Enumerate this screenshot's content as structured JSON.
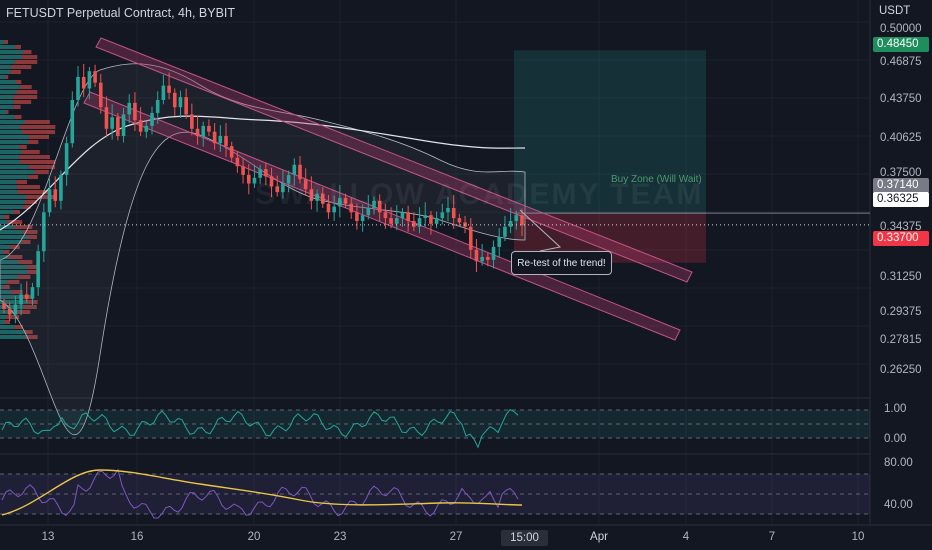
{
  "header": {
    "title": "FETUSDT Perpetual Contract, 4h, BYBIT",
    "currency": "USDT"
  },
  "watermark": "SWALLOW ACADEMY TEAM",
  "annotations": {
    "callout": "Re-test of the trend!",
    "buy_zone": "Buy Zone (Will Wait)"
  },
  "badges": {
    "target": {
      "label": "0.48450",
      "color": "#1e8f5c"
    },
    "entry": {
      "label": "0.37140",
      "color": "#787b86"
    },
    "current": {
      "label": "0.36325",
      "color": "#ffffff"
    },
    "stop": {
      "label": "0.33700",
      "color": "#f23645"
    }
  },
  "price_axis": [
    "0.50000",
    "0.46875",
    "0.43750",
    "0.40625",
    "0.37500",
    "0.34375",
    "0.31250",
    "0.29375",
    "0.27815",
    "0.26250"
  ],
  "osc1_axis": [
    "1.00",
    "0.00"
  ],
  "osc2_axis": [
    "80.00",
    "40.00"
  ],
  "time_axis": {
    "labels": [
      "13",
      "16",
      "20",
      "23",
      "27",
      "Apr",
      "4",
      "7",
      "10"
    ],
    "bold": [
      "Apr"
    ],
    "current": "15:00"
  },
  "colors": {
    "bull": "#26a69a",
    "bear": "#ef5350",
    "channel": "#b03a6a",
    "rsi": "#7e57c2",
    "ma": "#e8c547",
    "osc1": "#26a69a"
  },
  "chart_data": {
    "type": "candlestick",
    "symbol": "FETUSDT",
    "interval": "4h",
    "ylim": [
      0.255,
      0.505
    ],
    "current_price": 0.36325,
    "trade": {
      "target": 0.4845,
      "entry": 0.3714,
      "stop": 0.337
    },
    "closes": [
      0.305,
      0.301,
      0.308,
      0.315,
      0.312,
      0.32,
      0.345,
      0.372,
      0.388,
      0.38,
      0.398,
      0.42,
      0.45,
      0.466,
      0.458,
      0.47,
      0.462,
      0.445,
      0.43,
      0.438,
      0.425,
      0.44,
      0.448,
      0.436,
      0.428,
      0.432,
      0.441,
      0.45,
      0.46,
      0.455,
      0.445,
      0.452,
      0.44,
      0.43,
      0.425,
      0.432,
      0.428,
      0.42,
      0.425,
      0.418,
      0.41,
      0.404,
      0.398,
      0.392,
      0.396,
      0.402,
      0.397,
      0.39,
      0.386,
      0.392,
      0.398,
      0.405,
      0.395,
      0.388,
      0.38,
      0.385,
      0.378,
      0.372,
      0.376,
      0.382,
      0.378,
      0.372,
      0.366,
      0.37,
      0.375,
      0.38,
      0.372,
      0.368,
      0.364,
      0.368,
      0.372,
      0.366,
      0.362,
      0.368,
      0.37,
      0.364,
      0.368,
      0.372,
      0.375,
      0.368,
      0.365,
      0.362,
      0.346,
      0.338,
      0.341,
      0.339,
      0.348,
      0.355,
      0.362,
      0.366,
      0.37,
      0.363
    ]
  }
}
